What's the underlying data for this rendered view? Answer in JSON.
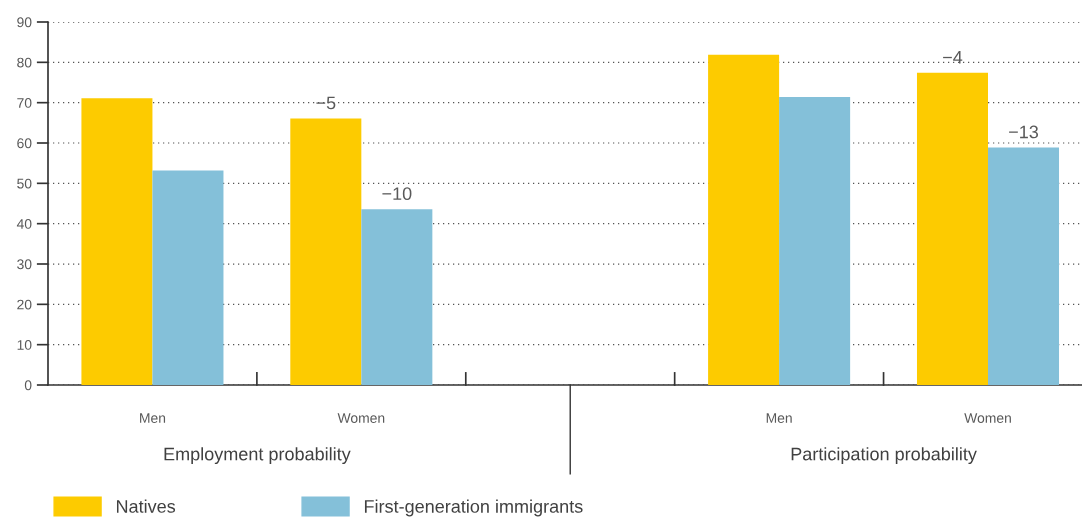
{
  "chart_data": {
    "type": "bar",
    "categories": [
      "Men",
      "Women",
      null,
      "Men",
      "Women"
    ],
    "series": [
      {
        "name": "Natives",
        "color": "#fdcb00",
        "values": [
          71.1,
          66.1,
          null,
          81.9,
          77.4
        ]
      },
      {
        "name": "First-generation immigrants",
        "color": "#84c0d9",
        "values": [
          53.2,
          43.6,
          null,
          71.4,
          58.9
        ]
      }
    ],
    "annotations": [
      "Employment probability",
      "Participation probability",
      {
        "text": "−5",
        "x": "Women",
        "y": 66.1
      },
      {
        "text": "−10",
        "x": "Women",
        "y": 43.6
      },
      "−4",
      "−13"
    ],
    "ylim": [
      0,
      90
    ],
    "yticks": [
      0,
      10,
      20,
      30,
      40,
      50,
      60,
      70,
      80,
      90
    ],
    "grid": "y",
    "legend": "bottom"
  }
}
